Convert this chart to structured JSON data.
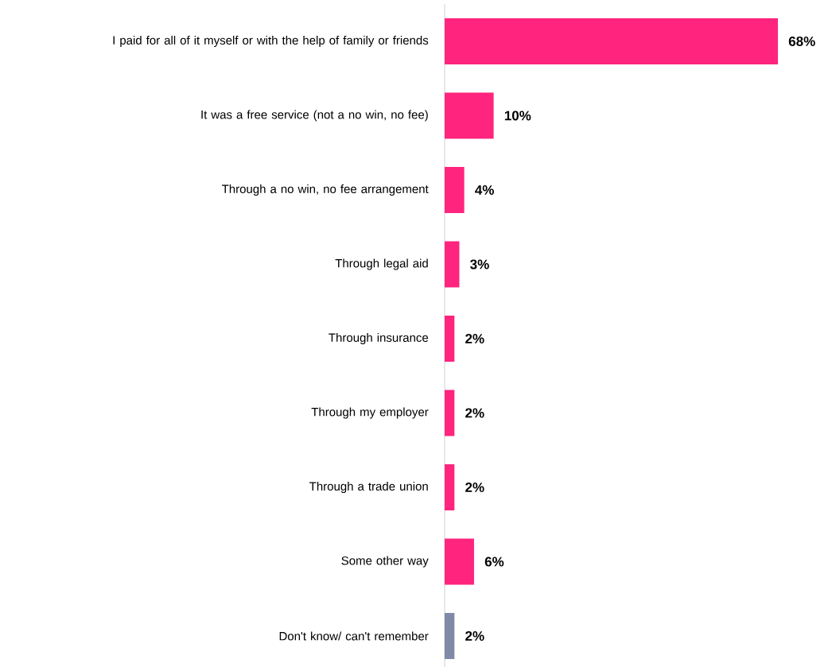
{
  "chart_data": {
    "type": "bar",
    "orientation": "horizontal",
    "categories": [
      "I paid for all of it myself or with the help of family or friends",
      "It was a free service (not a no win, no fee)",
      "Through a no win, no fee arrangement",
      "Through legal aid",
      "Through insurance",
      "Through my employer",
      "Through a trade union",
      "Some other way",
      "Don't know/ can't remember"
    ],
    "values": [
      68,
      10,
      4,
      3,
      2,
      2,
      2,
      6,
      2
    ],
    "colors": [
      "#ff247e",
      "#ff247e",
      "#ff247e",
      "#ff247e",
      "#ff247e",
      "#ff247e",
      "#ff247e",
      "#ff247e",
      "#7f8aa6"
    ],
    "value_labels": [
      "68%",
      "10%",
      "4%",
      "3%",
      "2%",
      "2%",
      "2%",
      "6%",
      "2%"
    ]
  }
}
